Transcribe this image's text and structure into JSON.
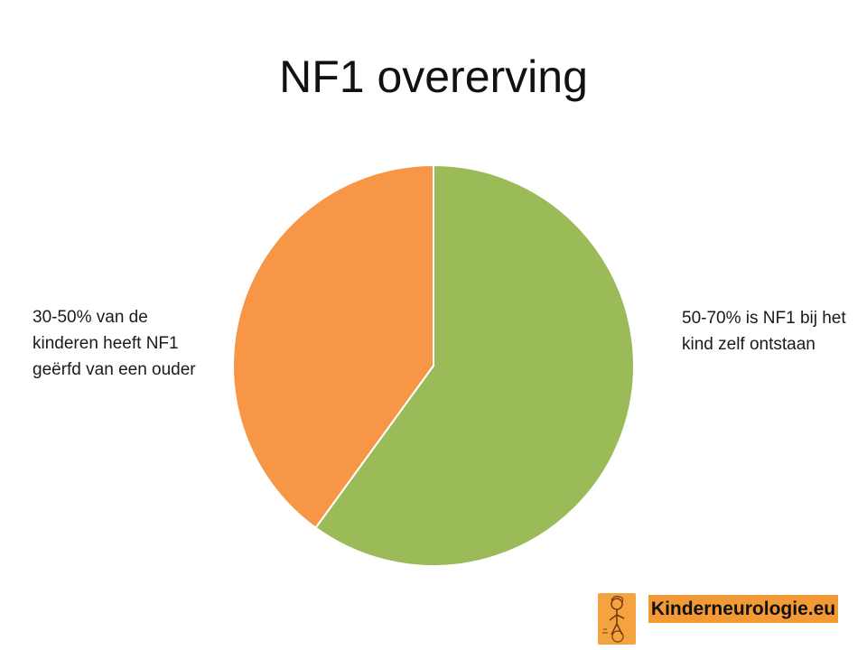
{
  "slide": {
    "title": "NF1 overerving"
  },
  "chart_data": {
    "type": "pie",
    "title": "NF1 overerving",
    "slices": [
      {
        "label": "50-70% is NF1 bij het kind zelf ontstaan",
        "value": 60,
        "color": "#9bbb59"
      },
      {
        "label": "30-50% van de kinderen heeft NF1 geërfd van een ouder",
        "value": 40,
        "color": "#f79646"
      }
    ],
    "start_angle_deg": 0,
    "direction": "clockwise"
  },
  "labels": {
    "left": "30-50% van de kinderen heeft NF1 geërfd van een ouder",
    "right": "50-70% is NF1 bij het kind zelf ontstaan"
  },
  "logo": {
    "text": "Kinderneurologie.eu",
    "icon": "child-figure-logo-icon"
  }
}
